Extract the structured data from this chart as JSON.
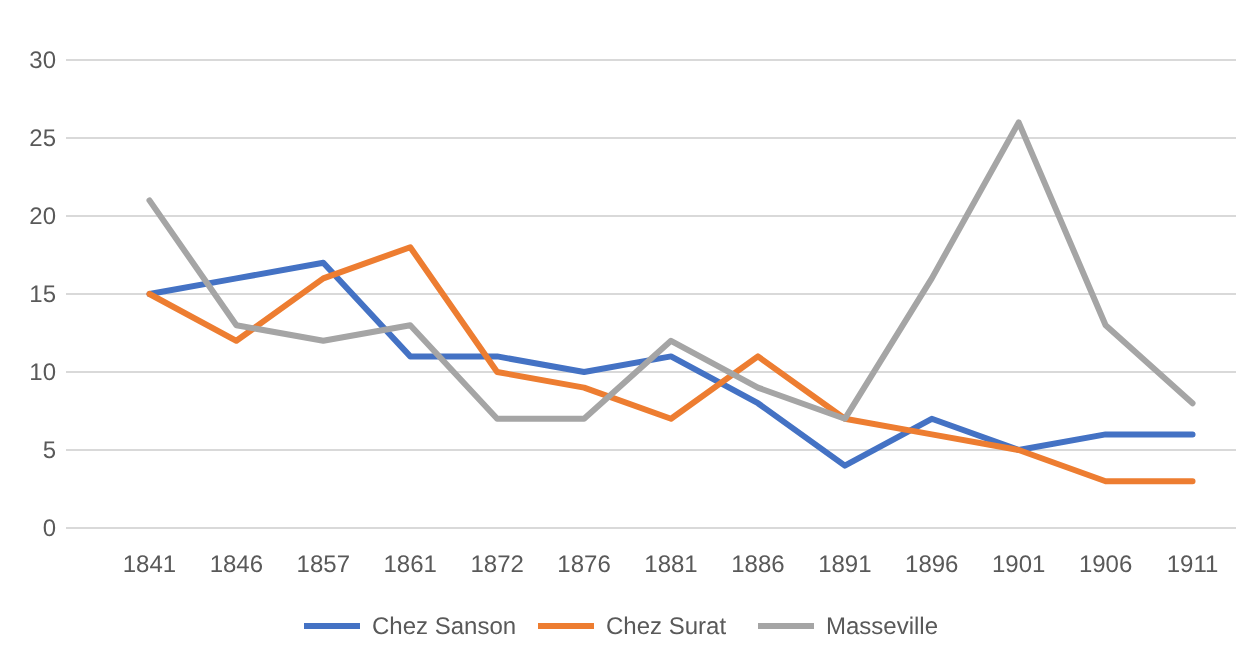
{
  "chart_data": {
    "type": "line",
    "categories": [
      "1841",
      "1846",
      "1857",
      "1861",
      "1872",
      "1876",
      "1881",
      "1886",
      "1891",
      "1896",
      "1901",
      "1906",
      "1911"
    ],
    "series": [
      {
        "name": "Chez Sanson",
        "color": "#4472c4",
        "values": [
          15,
          16,
          17,
          11,
          11,
          10,
          11,
          8,
          4,
          7,
          5,
          6,
          6
        ]
      },
      {
        "name": "Chez Surat",
        "color": "#ed7d31",
        "values": [
          15,
          12,
          16,
          18,
          10,
          9,
          7,
          11,
          7,
          6,
          5,
          3,
          3
        ]
      },
      {
        "name": "Masseville",
        "color": "#a5a5a5",
        "values": [
          21,
          13,
          12,
          13,
          7,
          7,
          12,
          9,
          7,
          16,
          26,
          13,
          8
        ]
      }
    ],
    "ylim": [
      0,
      30
    ],
    "yticks": [
      0,
      5,
      10,
      15,
      20,
      25,
      30
    ],
    "grid": "y",
    "legend": "bottom",
    "marker": "none",
    "line_style": "solid"
  }
}
